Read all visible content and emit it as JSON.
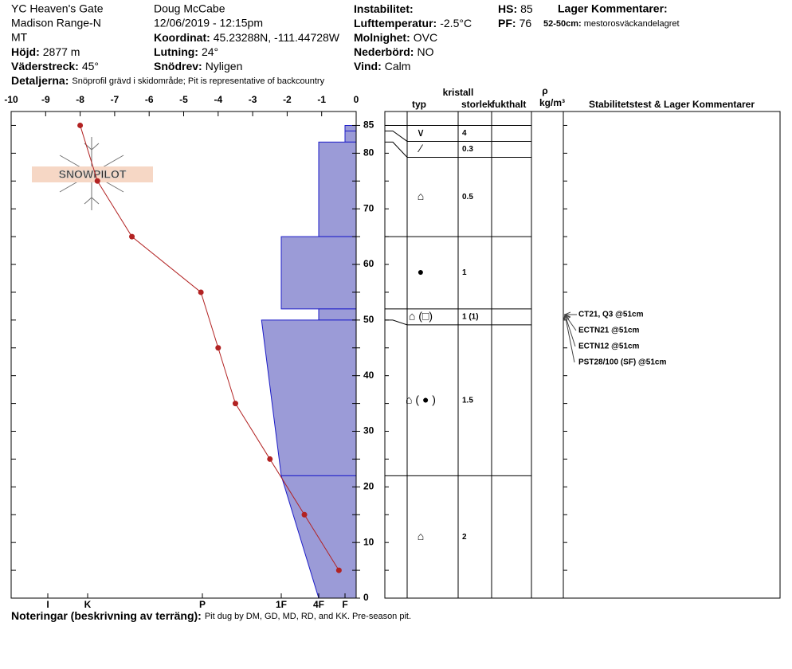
{
  "header": {
    "site": [
      "YC Heaven's Gate",
      "Madison Range-N",
      "MT"
    ],
    "observer": "Doug McCabe",
    "datetime": "12/06/2019 - 12:15pm",
    "fields": [
      {
        "label": "Höjd:",
        "value": "2877 m"
      },
      {
        "label": "Väderstreck:",
        "value": "45°"
      },
      {
        "label": "Koordinat:",
        "value": "45.23288N, -111.44728W"
      },
      {
        "label": "Lutning:",
        "value": "24°"
      },
      {
        "label": "Snödrev:",
        "value": "Nyligen"
      },
      {
        "label": "Instabilitet:"
      },
      {
        "label": "Lufttemperatur:",
        "value": "-2.5°C"
      },
      {
        "label": "Molnighet:",
        "value": "OVC"
      },
      {
        "label": "Nederbörd:",
        "value": "NO"
      },
      {
        "label": "Vind:",
        "value": "Calm"
      },
      {
        "label": "HS:",
        "value": "85"
      },
      {
        "label": "PF:",
        "value": "76"
      }
    ],
    "details": {
      "label": "Detaljerna:",
      "value": "Snöprofil grävd i skidområde;  Pit is representative of backcountry"
    },
    "layer_comments_title": "Lager Kommentarer:",
    "layer_comment": {
      "label": "52-50cm:",
      "value": "mestorosväckandelagret"
    }
  },
  "logo": "SNOWPILOT",
  "chart_data": {
    "type": "snow_profile",
    "temperature": {
      "color": "#b22222",
      "x": [
        -8,
        -7.5,
        -6.5,
        -4.5,
        -4,
        -3.5,
        -2.5,
        -1.5,
        -0.5
      ],
      "y": [
        85,
        75,
        65,
        55,
        45,
        35,
        25,
        15,
        5
      ]
    },
    "xlim": [
      -10,
      0
    ],
    "xticks": [
      -10,
      -9,
      -8,
      -7,
      -6,
      -5,
      -4,
      -3,
      -2,
      -1,
      0
    ],
    "ylim": [
      0,
      87.5
    ],
    "yticks": [
      0,
      10,
      20,
      30,
      40,
      50,
      60,
      70,
      80,
      85
    ],
    "yminor": [
      5,
      15,
      25,
      35,
      45,
      55,
      65,
      75
    ],
    "hardness_ticks": [
      {
        "value": 6,
        "label": "I"
      },
      {
        "value": 5,
        "label": "K"
      },
      {
        "value": 4,
        "label": "P"
      },
      {
        "value": 3,
        "label": "1F"
      },
      {
        "value": 2,
        "label": "4F"
      },
      {
        "value": 1,
        "label": "F"
      }
    ],
    "bar_color": "#9b9bd7",
    "bar_edge": "#1c1cc8",
    "layers": [
      {
        "top": 85,
        "bottom": 84,
        "hardness_top": 1,
        "hardness_bottom": 1,
        "typ": "∨",
        "size": 4
      },
      {
        "top": 84,
        "bottom": 82,
        "hardness_top": 1,
        "hardness_bottom": 1,
        "typ": "⁄",
        "size": 0.3
      },
      {
        "top": 82,
        "bottom": 65,
        "hardness_top": 2,
        "hardness_bottom": 2,
        "typ": "⌂",
        "size": 0.5
      },
      {
        "top": 65,
        "bottom": 52,
        "hardness_top": 3,
        "hardness_bottom": 3,
        "typ": "●",
        "size": 1
      },
      {
        "top": 52,
        "bottom": 50,
        "hardness_top": 2,
        "hardness_bottom": 2,
        "typ": "⌂ (□)",
        "size": "1 (1)"
      },
      {
        "top": 50,
        "bottom": 22,
        "hardness_top": 3.25,
        "hardness_bottom": 3,
        "typ": "⌂ ( ● )",
        "size": 1.5
      },
      {
        "top": 22,
        "bottom": 0,
        "hardness_top": 3,
        "hardness_bottom": 2,
        "typ": "⌂",
        "size": 2
      }
    ],
    "table_headers": {
      "crystal": "kristall",
      "type": "typ",
      "size": "storlek",
      "moisture": "fukthalt",
      "rho": "ρ",
      "density_unit": "kg/m³",
      "comments": "Stabilitetstest & Lager Kommentarer"
    },
    "stability_tests": [
      "CT21, Q3 @51cm",
      "ECTN21 @51cm",
      "ECTN12 @51cm",
      "PST28/100 (SF) @51cm"
    ]
  },
  "notes": {
    "label": "Noteringar (beskrivning av terräng):",
    "value": "Pit dug by DM, GD, MD, RD, and KK. Pre-season pit."
  }
}
